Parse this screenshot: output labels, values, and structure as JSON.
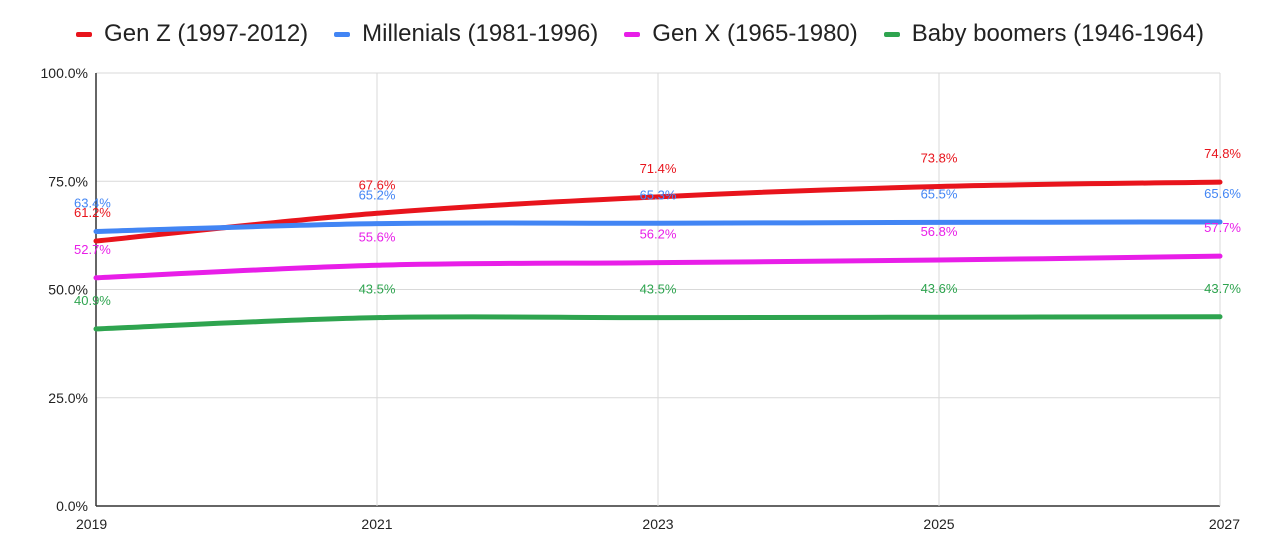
{
  "chart_data": {
    "type": "line",
    "title": "",
    "xlabel": "",
    "ylabel": "",
    "x": [
      "2019",
      "2021",
      "2023",
      "2025",
      "2027"
    ],
    "ylim": [
      0,
      100
    ],
    "y_ticks": [
      "0.0%",
      "25.0%",
      "50.0%",
      "75.0%",
      "100.0%"
    ],
    "grid": true,
    "legend_position": "top",
    "series": [
      {
        "name": "Gen Z (1997-2012)",
        "color": "#e8141c",
        "values": [
          61.2,
          67.6,
          71.4,
          73.8,
          74.8
        ],
        "labels": [
          "61.2%",
          "67.6%",
          "71.4%",
          "73.8%",
          "74.8%"
        ]
      },
      {
        "name": "Millenials (1981-1996)",
        "color": "#4285f4",
        "values": [
          63.4,
          65.2,
          65.3,
          65.5,
          65.6
        ],
        "labels": [
          "63.4%",
          "65.2%",
          "65.3%",
          "65.5%",
          "65.6%"
        ]
      },
      {
        "name": "Gen X (1965-1980)",
        "color": "#e81ee8",
        "values": [
          52.7,
          55.6,
          56.2,
          56.8,
          57.7
        ],
        "labels": [
          "52.7%",
          "55.6%",
          "56.2%",
          "56.8%",
          "57.7%"
        ]
      },
      {
        "name": "Baby boomers (1946-1964)",
        "color": "#2ea44f",
        "values": [
          40.9,
          43.5,
          43.5,
          43.6,
          43.7
        ],
        "labels": [
          "40.9%",
          "43.5%",
          "43.5%",
          "43.6%",
          "43.7%"
        ]
      }
    ]
  }
}
